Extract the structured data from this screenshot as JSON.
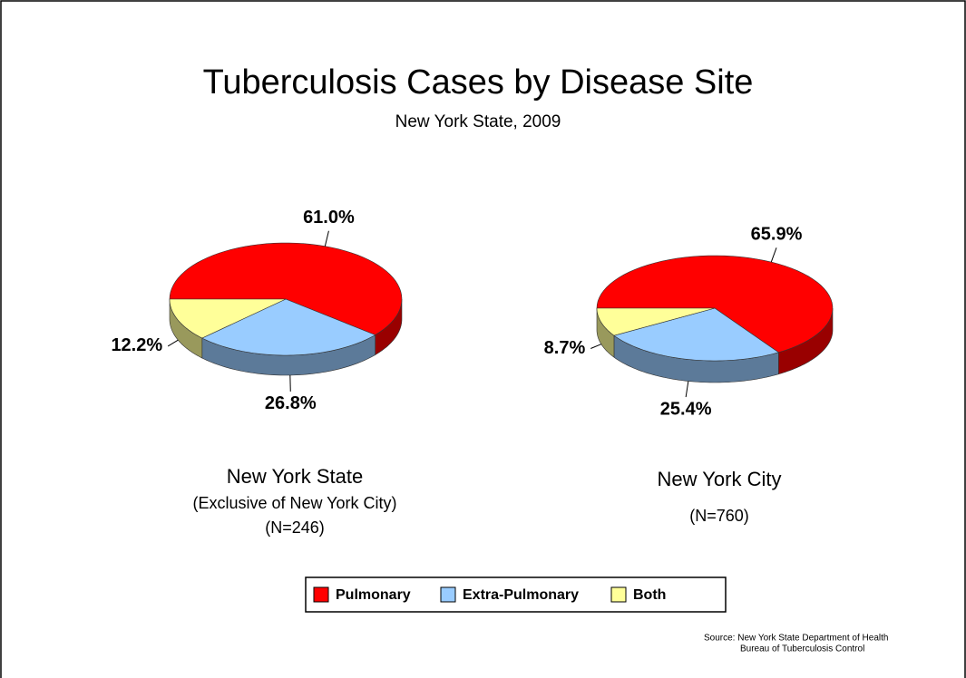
{
  "title": "Tuberculosis Cases by Disease Site",
  "subtitle": "New York State, 2009",
  "source": [
    "Source:   New York State Department of Health",
    "Bureau of Tuberculosis Control"
  ],
  "chart_data": [
    {
      "type": "pie",
      "title": "New York State",
      "subtitle": [
        "(Exclusive of New York City)",
        "(N=246)"
      ],
      "categories": [
        "Pulmonary",
        "Extra-Pulmonary",
        "Both"
      ],
      "values": [
        61.0,
        26.8,
        12.2
      ],
      "value_labels": [
        "61.0%",
        "26.8%",
        "12.2%"
      ],
      "colors": [
        "#ff0000",
        "#99ccff",
        "#ffff99"
      ]
    },
    {
      "type": "pie",
      "title": "New York City",
      "subtitle": [
        "(N=760)"
      ],
      "categories": [
        "Pulmonary",
        "Extra-Pulmonary",
        "Both"
      ],
      "values": [
        65.9,
        25.4,
        8.7
      ],
      "value_labels": [
        "65.9%",
        "25.4%",
        "8.7%"
      ],
      "colors": [
        "#ff0000",
        "#99ccff",
        "#ffff99"
      ]
    }
  ]
}
